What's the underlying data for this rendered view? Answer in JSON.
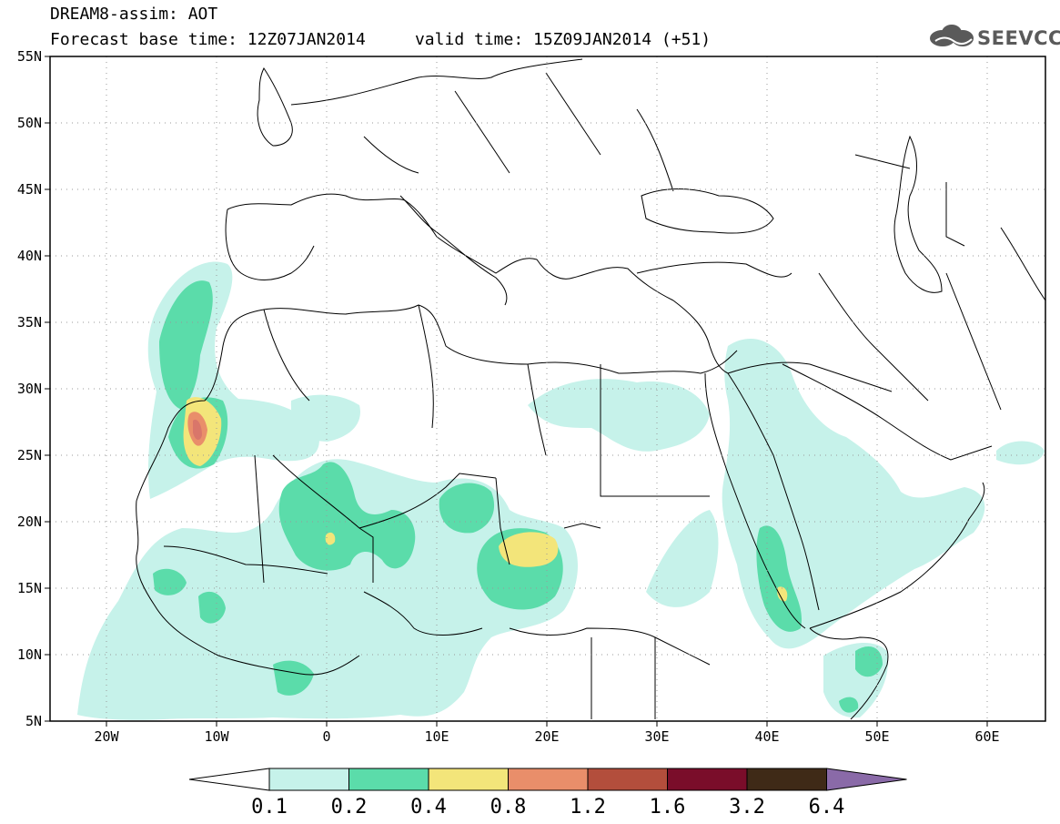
{
  "header": {
    "line1": "DREAM8-assim: AOT",
    "line2": "Forecast base time: 12Z07JAN2014     valid time: 15Z09JAN2014 (+51)",
    "logo_text": "SEEVCCC"
  },
  "map": {
    "type": "filled-contour-map",
    "lon_range": [
      -25,
      65
    ],
    "lat_range": [
      5,
      55
    ],
    "x_ticks": [
      "20W",
      "10W",
      "0",
      "10E",
      "20E",
      "30E",
      "40E",
      "50E",
      "60E"
    ],
    "y_ticks": [
      "55N",
      "50N",
      "45N",
      "40N",
      "35N",
      "30N",
      "25N",
      "20N",
      "15N",
      "10N",
      "5N"
    ],
    "grid": "dotted"
  },
  "colorbar": {
    "labels": [
      "0.1",
      "0.2",
      "0.4",
      "0.8",
      "1.2",
      "1.6",
      "3.2",
      "6.4"
    ],
    "colors": [
      "#ffffff",
      "#c6f2ea",
      "#5bdcaa",
      "#f3e57a",
      "#e98e6a",
      "#b34e3c",
      "#7a0d2a",
      "#3f2a17",
      "#8a6aa8"
    ]
  },
  "chart_data": {
    "type": "heatmap",
    "variable": "AOT",
    "levels": [
      0.1,
      0.2,
      0.4,
      0.8,
      1.2,
      1.6,
      3.2,
      6.4
    ],
    "x": [
      "20W",
      "10W",
      "0",
      "10E",
      "20E",
      "30E",
      "40E",
      "50E",
      "60E"
    ],
    "y": [
      "55N",
      "50N",
      "45N",
      "40N",
      "35N",
      "30N",
      "25N",
      "20N",
      "15N",
      "10N",
      "5N"
    ]
  }
}
